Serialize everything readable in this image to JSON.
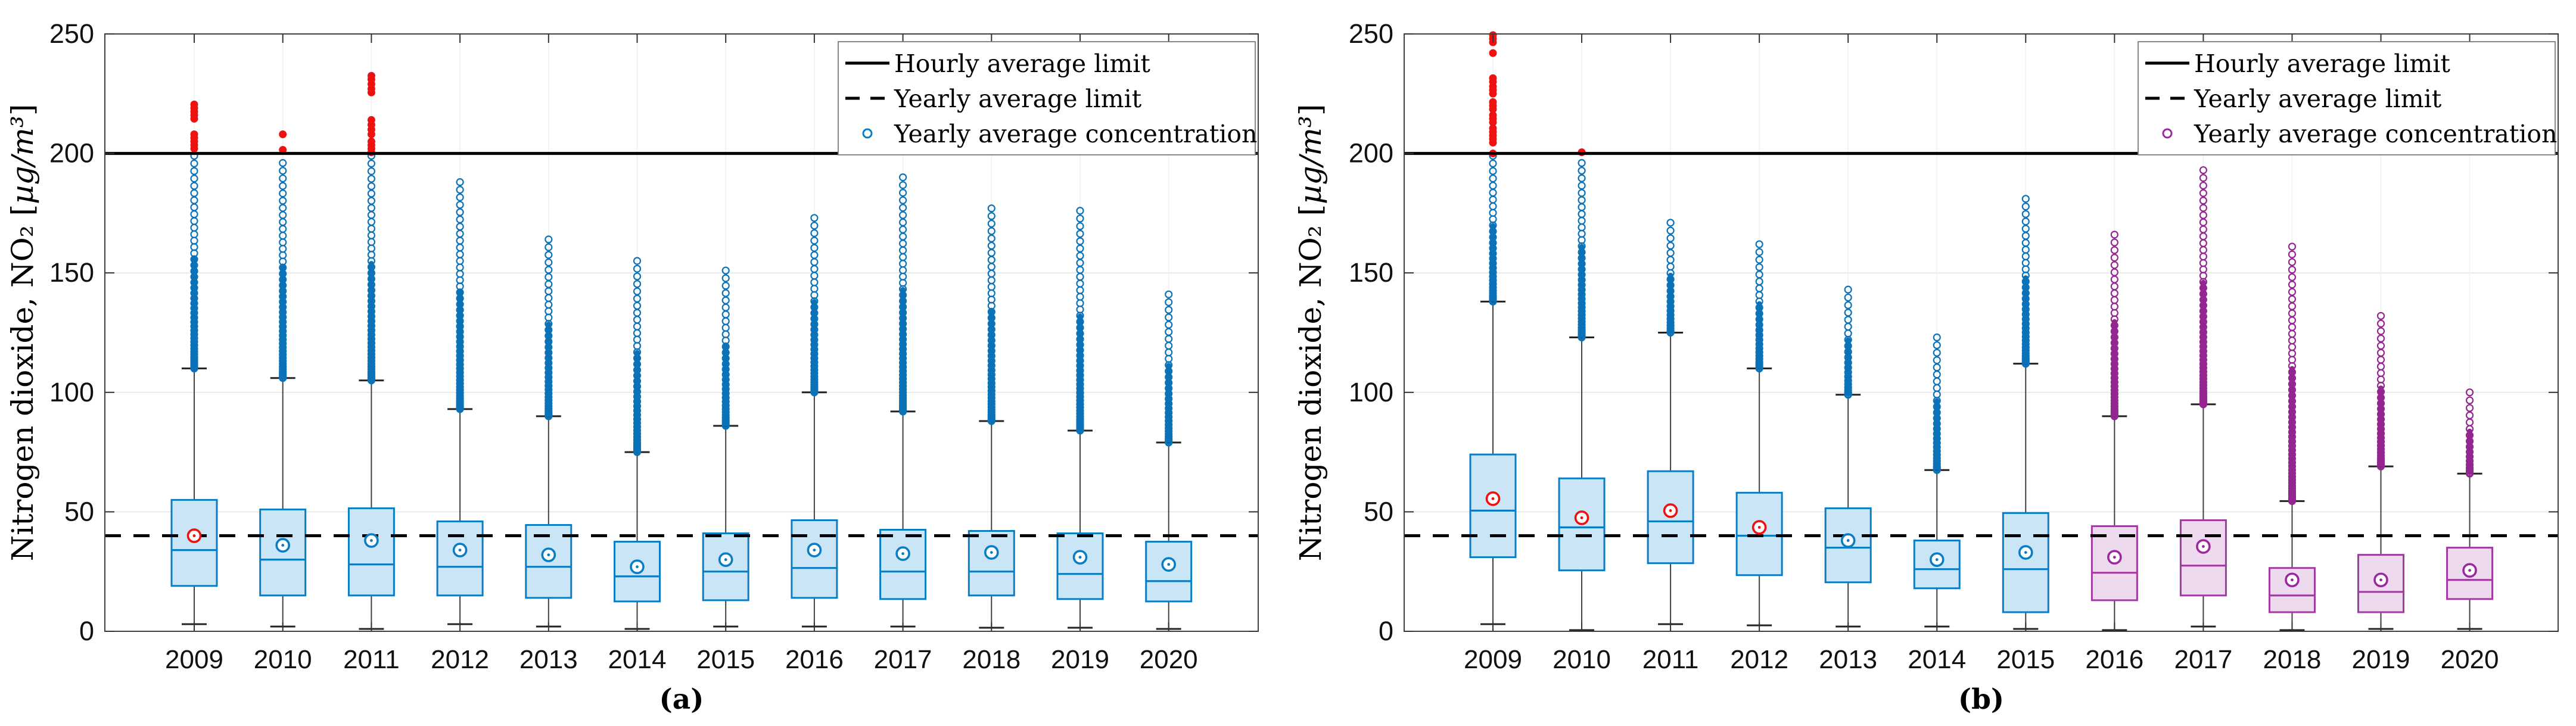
{
  "colors": {
    "blue_edge": "#0b7dc2",
    "blue_fill": "#c9e5f6",
    "blue_outlier": "#0b72b8",
    "purple_edge": "#a03ba0",
    "purple_fill": "#eddaee",
    "purple_outlier": "#93278f",
    "red": "#ee1111",
    "limit_line": "#000000",
    "whisker": "#404040",
    "grid": "#e9e9e9"
  },
  "chart_data": [
    {
      "type": "boxplot",
      "panel_caption": "(a)",
      "ylabel": "Nitrogen dioxide, NO₂ [µg/m³]",
      "xlabel": "",
      "ylim": [
        0,
        250
      ],
      "yticks": [
        0,
        50,
        100,
        150,
        200,
        250
      ],
      "grid": "on",
      "legend_position": "top-right",
      "legend": [
        "Hourly average limit",
        "Yearly average limit",
        "Yearly average concentration"
      ],
      "hourly_average_limit": 200,
      "yearly_average_limit": 40,
      "years": [
        "2009",
        "2010",
        "2011",
        "2012",
        "2013",
        "2014",
        "2015",
        "2016",
        "2017",
        "2018",
        "2019",
        "2020"
      ],
      "boxes": [
        {
          "year": "2009",
          "whisker_low": 3,
          "q1": 19,
          "median": 34,
          "q3": 55,
          "whisker_high": 110,
          "mean": 40,
          "mean_ring_color": "red",
          "box_color": "blue",
          "outliers_top": 199,
          "red_outliers": [
            202,
            203.5,
            205,
            206.5,
            208,
            214.5,
            216,
            217.5,
            219,
            220.5
          ]
        },
        {
          "year": "2010",
          "whisker_low": 2,
          "q1": 15,
          "median": 30,
          "q3": 51,
          "whisker_high": 106,
          "mean": 36,
          "mean_ring_color": "blue",
          "box_color": "blue",
          "outliers_top": 196,
          "red_outliers": [
            201.5,
            208
          ]
        },
        {
          "year": "2011",
          "whisker_low": 1,
          "q1": 15,
          "median": 28,
          "q3": 51.5,
          "whisker_high": 105,
          "mean": 38,
          "mean_ring_color": "blue",
          "box_color": "blue",
          "outliers_top": 199,
          "red_outliers": [
            200.5,
            202,
            203.5,
            205,
            208,
            210,
            212,
            214,
            225.5,
            227,
            229,
            231,
            232.5
          ]
        },
        {
          "year": "2012",
          "whisker_low": 3,
          "q1": 15,
          "median": 27,
          "q3": 46,
          "whisker_high": 93,
          "mean": 34,
          "mean_ring_color": "blue",
          "box_color": "blue",
          "outliers_top": 188,
          "red_outliers": []
        },
        {
          "year": "2013",
          "whisker_low": 2,
          "q1": 14,
          "median": 27,
          "q3": 44.5,
          "whisker_high": 90,
          "mean": 32,
          "mean_ring_color": "blue",
          "box_color": "blue",
          "outliers_top": 164,
          "red_outliers": []
        },
        {
          "year": "2014",
          "whisker_low": 1,
          "q1": 12.5,
          "median": 23,
          "q3": 37.5,
          "whisker_high": 75,
          "mean": 27,
          "mean_ring_color": "blue",
          "box_color": "blue",
          "outliers_top": 155,
          "red_outliers": []
        },
        {
          "year": "2015",
          "whisker_low": 2,
          "q1": 13,
          "median": 25,
          "q3": 41,
          "whisker_high": 86,
          "mean": 30,
          "mean_ring_color": "blue",
          "box_color": "blue",
          "outliers_top": 151,
          "red_outliers": []
        },
        {
          "year": "2016",
          "whisker_low": 2,
          "q1": 14,
          "median": 26.5,
          "q3": 46.5,
          "whisker_high": 100,
          "mean": 34,
          "mean_ring_color": "blue",
          "box_color": "blue",
          "outliers_top": 173,
          "red_outliers": []
        },
        {
          "year": "2017",
          "whisker_low": 2,
          "q1": 13.5,
          "median": 25,
          "q3": 42.5,
          "whisker_high": 92,
          "mean": 32.5,
          "mean_ring_color": "blue",
          "box_color": "blue",
          "outliers_top": 190,
          "red_outliers": []
        },
        {
          "year": "2018",
          "whisker_low": 1.5,
          "q1": 15,
          "median": 25,
          "q3": 42,
          "whisker_high": 88,
          "mean": 33,
          "mean_ring_color": "blue",
          "box_color": "blue",
          "outliers_top": 177,
          "red_outliers": []
        },
        {
          "year": "2019",
          "whisker_low": 1.5,
          "q1": 13.5,
          "median": 24,
          "q3": 41,
          "whisker_high": 84,
          "mean": 31,
          "mean_ring_color": "blue",
          "box_color": "blue",
          "outliers_top": 176,
          "red_outliers": []
        },
        {
          "year": "2020",
          "whisker_low": 1,
          "q1": 12.5,
          "median": 21,
          "q3": 37.5,
          "whisker_high": 79,
          "mean": 28,
          "mean_ring_color": "blue",
          "box_color": "blue",
          "outliers_top": 141,
          "red_outliers": []
        }
      ]
    },
    {
      "type": "boxplot",
      "panel_caption": "(b)",
      "ylabel": "Nitrogen dioxide, NO₂ [µg/m³]",
      "xlabel": "",
      "ylim": [
        0,
        250
      ],
      "yticks": [
        0,
        50,
        100,
        150,
        200,
        250
      ],
      "grid": "on",
      "legend_position": "top-right",
      "legend": [
        "Hourly average limit",
        "Yearly average limit",
        "Yearly average concentration"
      ],
      "hourly_average_limit": 200,
      "yearly_average_limit": 40,
      "years": [
        "2009",
        "2010",
        "2011",
        "2012",
        "2013",
        "2014",
        "2015",
        "2016",
        "2017",
        "2018",
        "2019",
        "2020"
      ],
      "boxes": [
        {
          "year": "2009",
          "whisker_low": 3,
          "q1": 31,
          "median": 50.5,
          "q3": 74,
          "whisker_high": 138,
          "mean": 55.5,
          "mean_ring_color": "red",
          "box_color": "blue",
          "outliers_top": 199,
          "red_outliers": [
            200,
            204.5,
            206,
            207.5,
            209,
            210.5,
            213,
            214.5,
            216,
            218.5,
            220,
            221.5,
            225,
            226.5,
            228,
            230,
            231.5,
            242,
            246.5,
            248,
            249.5
          ]
        },
        {
          "year": "2010",
          "whisker_low": 0.5,
          "q1": 25.5,
          "median": 43.5,
          "q3": 64,
          "whisker_high": 123,
          "mean": 47.5,
          "mean_ring_color": "red",
          "box_color": "blue",
          "outliers_top": 196,
          "red_outliers": [
            200.5
          ]
        },
        {
          "year": "2011",
          "whisker_low": 3,
          "q1": 28.5,
          "median": 46,
          "q3": 67,
          "whisker_high": 125,
          "mean": 50.5,
          "mean_ring_color": "red",
          "box_color": "blue",
          "outliers_top": 171,
          "red_outliers": []
        },
        {
          "year": "2012",
          "whisker_low": 2.5,
          "q1": 23.5,
          "median": 40,
          "q3": 58,
          "whisker_high": 110,
          "mean": 43.5,
          "mean_ring_color": "red",
          "box_color": "blue",
          "outliers_top": 162,
          "red_outliers": []
        },
        {
          "year": "2013",
          "whisker_low": 2,
          "q1": 20.5,
          "median": 35,
          "q3": 51.5,
          "whisker_high": 99,
          "mean": 38,
          "mean_ring_color": "blue",
          "box_color": "blue",
          "outliers_top": 143,
          "red_outliers": []
        },
        {
          "year": "2014",
          "whisker_low": 2,
          "q1": 18,
          "median": 26,
          "q3": 38,
          "whisker_high": 67.5,
          "mean": 30,
          "mean_ring_color": "blue",
          "box_color": "blue",
          "outliers_top": 123,
          "red_outliers": []
        },
        {
          "year": "2015",
          "whisker_low": 1,
          "q1": 8,
          "median": 26,
          "q3": 49.5,
          "whisker_high": 112,
          "mean": 33,
          "mean_ring_color": "blue",
          "box_color": "blue",
          "outliers_top": 181,
          "red_outliers": []
        },
        {
          "year": "2016",
          "whisker_low": 0.5,
          "q1": 13,
          "median": 24.5,
          "q3": 44,
          "whisker_high": 90,
          "mean": 31,
          "mean_ring_color": "purple",
          "box_color": "purple",
          "outliers_top": 166,
          "red_outliers": []
        },
        {
          "year": "2017",
          "whisker_low": 2,
          "q1": 15,
          "median": 27.5,
          "q3": 46.5,
          "whisker_high": 95,
          "mean": 35.5,
          "mean_ring_color": "purple",
          "box_color": "purple",
          "outliers_top": 193,
          "red_outliers": []
        },
        {
          "year": "2018",
          "whisker_low": 0.5,
          "q1": 8,
          "median": 15,
          "q3": 26.5,
          "whisker_high": 54.5,
          "mean": 21.5,
          "mean_ring_color": "purple",
          "box_color": "purple",
          "outliers_top": 161,
          "red_outliers": []
        },
        {
          "year": "2019",
          "whisker_low": 1,
          "q1": 8,
          "median": 16.5,
          "q3": 32,
          "whisker_high": 69,
          "mean": 21.5,
          "mean_ring_color": "purple",
          "box_color": "purple",
          "outliers_top": 132,
          "red_outliers": []
        },
        {
          "year": "2020",
          "whisker_low": 1,
          "q1": 13.5,
          "median": 21.5,
          "q3": 35,
          "whisker_high": 66,
          "mean": 25.5,
          "mean_ring_color": "purple",
          "box_color": "purple",
          "outliers_top": 100,
          "red_outliers": []
        }
      ]
    }
  ]
}
